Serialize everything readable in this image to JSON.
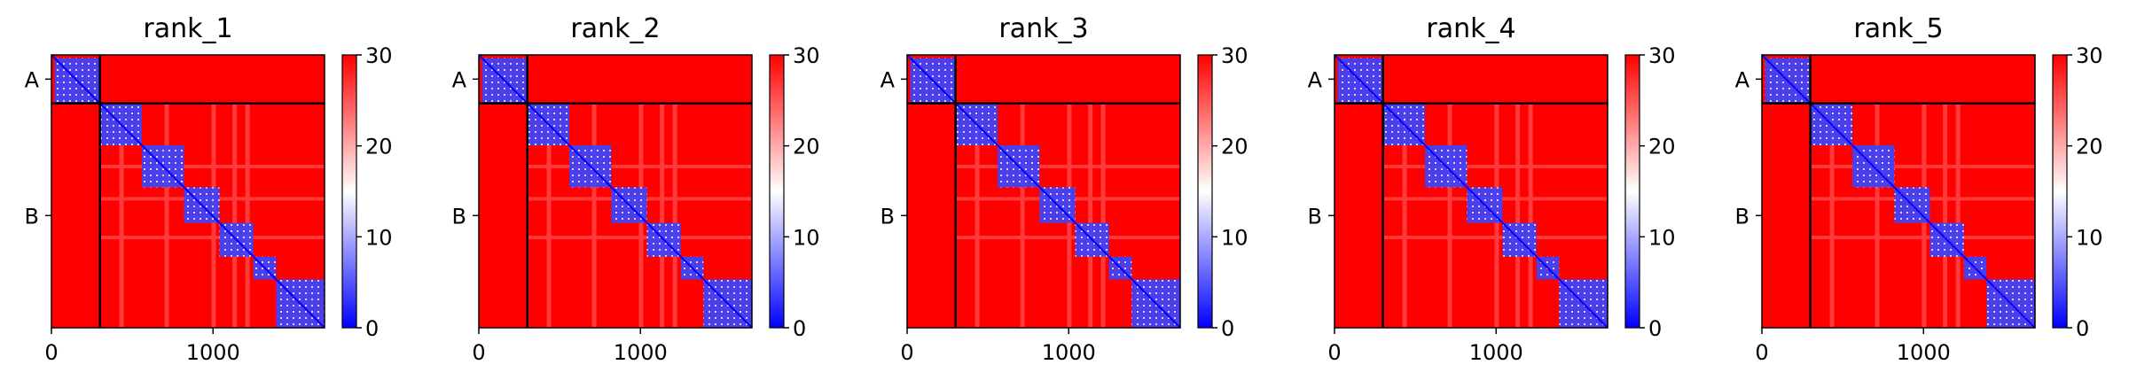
{
  "colors": {
    "low": "#0000ff",
    "mid": "#ffffff",
    "high": "#ff0000",
    "frame": "#000000"
  },
  "chart_data": [
    {
      "type": "heatmap",
      "title": "rank_1",
      "xlabel": "",
      "ylabel": "",
      "x_ticks": [
        0,
        1000
      ],
      "xlim": [
        0,
        1690
      ],
      "chain_boundary": 300,
      "chain_labels": [
        {
          "label": "A",
          "center": 150
        },
        {
          "label": "B",
          "center": 995
        }
      ],
      "blocks": [
        [
          20,
          300
        ],
        [
          300,
          560
        ],
        [
          560,
          820
        ],
        [
          820,
          1040
        ],
        [
          1040,
          1250
        ],
        [
          1250,
          1390
        ],
        [
          1390,
          1690
        ]
      ],
      "colorbar": {
        "min": 0,
        "max": 30,
        "ticks": [
          0,
          10,
          20,
          30
        ],
        "colors": [
          "blue",
          "white",
          "red"
        ]
      }
    },
    {
      "type": "heatmap",
      "title": "rank_2",
      "xlabel": "",
      "ylabel": "",
      "x_ticks": [
        0,
        1000
      ],
      "xlim": [
        0,
        1690
      ],
      "chain_boundary": 300,
      "chain_labels": [
        {
          "label": "A",
          "center": 150
        },
        {
          "label": "B",
          "center": 995
        }
      ],
      "blocks": [
        [
          20,
          300
        ],
        [
          300,
          560
        ],
        [
          560,
          820
        ],
        [
          820,
          1040
        ],
        [
          1040,
          1250
        ],
        [
          1250,
          1390
        ],
        [
          1390,
          1690
        ]
      ],
      "colorbar": {
        "min": 0,
        "max": 30,
        "ticks": [
          0,
          10,
          20,
          30
        ],
        "colors": [
          "blue",
          "white",
          "red"
        ]
      }
    },
    {
      "type": "heatmap",
      "title": "rank_3",
      "xlabel": "",
      "ylabel": "",
      "x_ticks": [
        0,
        1000
      ],
      "xlim": [
        0,
        1690
      ],
      "chain_boundary": 300,
      "chain_labels": [
        {
          "label": "A",
          "center": 150
        },
        {
          "label": "B",
          "center": 995
        }
      ],
      "blocks": [
        [
          20,
          300
        ],
        [
          300,
          560
        ],
        [
          560,
          820
        ],
        [
          820,
          1040
        ],
        [
          1040,
          1250
        ],
        [
          1250,
          1390
        ],
        [
          1390,
          1690
        ]
      ],
      "colorbar": {
        "min": 0,
        "max": 30,
        "ticks": [
          0,
          10,
          20,
          30
        ],
        "colors": [
          "blue",
          "white",
          "red"
        ]
      }
    },
    {
      "type": "heatmap",
      "title": "rank_4",
      "xlabel": "",
      "ylabel": "",
      "x_ticks": [
        0,
        1000
      ],
      "xlim": [
        0,
        1690
      ],
      "chain_boundary": 300,
      "chain_labels": [
        {
          "label": "A",
          "center": 150
        },
        {
          "label": "B",
          "center": 995
        }
      ],
      "blocks": [
        [
          20,
          300
        ],
        [
          300,
          560
        ],
        [
          560,
          820
        ],
        [
          820,
          1040
        ],
        [
          1040,
          1250
        ],
        [
          1250,
          1390
        ],
        [
          1390,
          1690
        ]
      ],
      "colorbar": {
        "min": 0,
        "max": 30,
        "ticks": [
          0,
          10,
          20,
          30
        ],
        "colors": [
          "blue",
          "white",
          "red"
        ]
      }
    },
    {
      "type": "heatmap",
      "title": "rank_5",
      "xlabel": "",
      "ylabel": "",
      "x_ticks": [
        0,
        1000
      ],
      "xlim": [
        0,
        1690
      ],
      "chain_boundary": 300,
      "chain_labels": [
        {
          "label": "A",
          "center": 150
        },
        {
          "label": "B",
          "center": 995
        }
      ],
      "blocks": [
        [
          20,
          300
        ],
        [
          300,
          560
        ],
        [
          560,
          820
        ],
        [
          820,
          1040
        ],
        [
          1040,
          1250
        ],
        [
          1250,
          1390
        ],
        [
          1390,
          1690
        ]
      ],
      "colorbar": {
        "min": 0,
        "max": 30,
        "ticks": [
          0,
          10,
          20,
          30
        ],
        "colors": [
          "blue",
          "white",
          "red"
        ]
      }
    }
  ]
}
